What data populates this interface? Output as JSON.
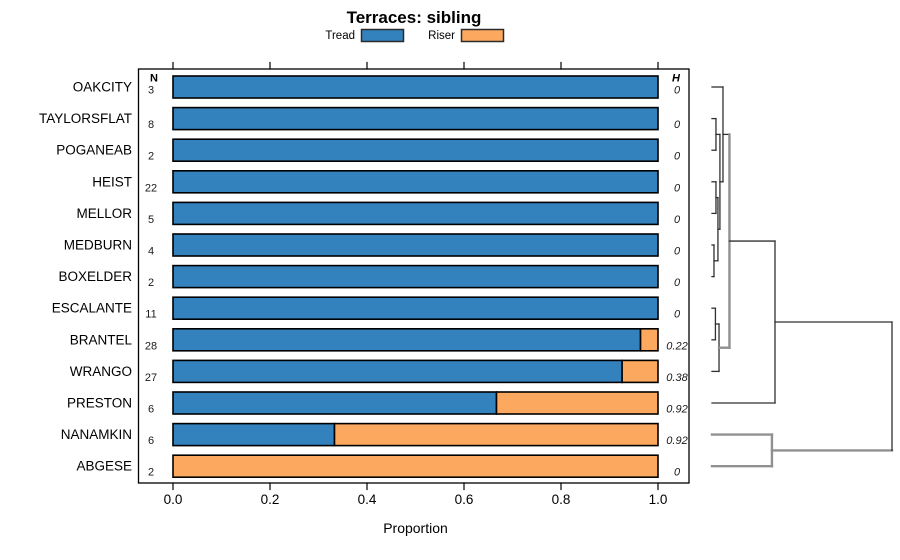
{
  "chart_data": {
    "type": "bar",
    "orientation": "horizontal",
    "stacked": true,
    "title": "Terraces: sibling",
    "xlabel": "Proportion",
    "xlim": [
      0,
      1
    ],
    "x_ticks": [
      "0.0",
      "0.2",
      "0.4",
      "0.6",
      "0.8",
      "1.0"
    ],
    "col_header_left": "N",
    "col_header_right": "H",
    "legend_position": "top",
    "series": [
      {
        "name": "Tread",
        "color": "#3382BE"
      },
      {
        "name": "Riser",
        "color": "#FCA95F"
      }
    ],
    "bar_border_color": "#000000",
    "rows": [
      {
        "label": "OAKCITY",
        "n": "3",
        "tread": 1,
        "riser": 0,
        "h": "0"
      },
      {
        "label": "TAYLORSFLAT",
        "n": "8",
        "tread": 1,
        "riser": 0,
        "h": "0"
      },
      {
        "label": "POGANEAB",
        "n": "2",
        "tread": 1,
        "riser": 0,
        "h": "0"
      },
      {
        "label": "HEIST",
        "n": "22",
        "tread": 1,
        "riser": 0,
        "h": "0"
      },
      {
        "label": "MELLOR",
        "n": "5",
        "tread": 1,
        "riser": 0,
        "h": "0"
      },
      {
        "label": "MEDBURN",
        "n": "4",
        "tread": 1,
        "riser": 0,
        "h": "0"
      },
      {
        "label": "BOXELDER",
        "n": "2",
        "tread": 1,
        "riser": 0,
        "h": "0"
      },
      {
        "label": "ESCALANTE",
        "n": "11",
        "tread": 1,
        "riser": 0,
        "h": "0"
      },
      {
        "label": "BRANTEL",
        "n": "28",
        "tread": 0.964,
        "riser": 0.036,
        "h": "0.22"
      },
      {
        "label": "WRANGO",
        "n": "27",
        "tread": 0.926,
        "riser": 0.074,
        "h": "0.38"
      },
      {
        "label": "PRESTON",
        "n": "6",
        "tread": 0.667,
        "riser": 0.333,
        "h": "0.92"
      },
      {
        "label": "NANAMKIN",
        "n": "6",
        "tread": 0.333,
        "riser": 0.667,
        "h": "0.92"
      },
      {
        "label": "ABGESE",
        "n": "2",
        "tread": 0,
        "riser": 1,
        "h": "0"
      }
    ],
    "dendrogram": {
      "line_color": "#303030",
      "group_line_color": "#909090",
      "merges": [
        {
          "id": "m1",
          "a": 2,
          "b": 3,
          "h": 0.022
        },
        {
          "id": "m2",
          "a": 4,
          "b": 5,
          "h": 0.022
        },
        {
          "id": "m3",
          "a": 6,
          "b": 7,
          "h": 0.011
        },
        {
          "id": "m4",
          "a": "m2",
          "b": "m3",
          "h": 0.033
        },
        {
          "id": "m5",
          "a": "m1",
          "b": "m4",
          "h": 0.044
        },
        {
          "id": "m6",
          "a": 1,
          "b": "m5",
          "h": 0.061
        },
        {
          "id": "m7",
          "a": 8,
          "b": 9,
          "h": 0.019
        },
        {
          "id": "m8",
          "a": "m7",
          "b": 10,
          "h": 0.039,
          "thick_out": true
        },
        {
          "id": "m9",
          "a": "m6",
          "b": "m8",
          "h": 0.097,
          "thick_v": true
        },
        {
          "id": "m10",
          "a": "m9",
          "b": 11,
          "h": 0.35
        },
        {
          "id": "m11",
          "a": 12,
          "b": 13,
          "h": 0.333,
          "thick_v": true,
          "thick_arms": true,
          "thick_out": true
        },
        {
          "id": "m12",
          "a": "m10",
          "b": "m11",
          "h": 1.0
        }
      ]
    }
  }
}
